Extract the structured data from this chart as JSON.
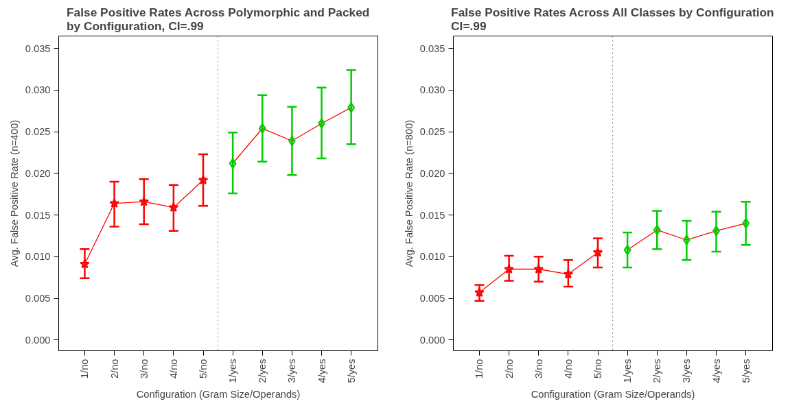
{
  "chart_data": [
    {
      "type": "line",
      "title": "False Positive Rates Across Polymorphic and Packed\nby Configuration, CI=.99",
      "xlabel": "Configuration (Gram Size/Operands)",
      "ylabel": "Avg. False Positive Rate (n=400)",
      "categories": [
        "1/no",
        "2/no",
        "3/no",
        "4/no",
        "5/no",
        "1/yes",
        "2/yes",
        "3/yes",
        "4/yes",
        "5/yes"
      ],
      "ylim": [
        -0.0013,
        0.0365
      ],
      "yticks": [
        {
          "value": 0,
          "label": "0.000"
        },
        0.005,
        {
          "value": 0.01,
          "label": "0.010"
        },
        0.015,
        {
          "value": 0.02,
          "label": "0.020"
        },
        0.025,
        {
          "value": 0.03,
          "label": "0.030"
        },
        0.035
      ],
      "grid": false,
      "series": [
        {
          "x": [
            "1/no",
            "2/no",
            "3/no",
            "4/no",
            "5/no"
          ],
          "color": "#ff0000",
          "marker": "star",
          "values": [
            0.0091,
            0.0164,
            0.0166,
            0.0159,
            0.0192
          ],
          "errors": [
            [
              0.0074,
              0.0109
            ],
            [
              0.0136,
              0.019
            ],
            [
              0.0139,
              0.0193
            ],
            [
              0.0131,
              0.0186
            ],
            [
              0.0161,
              0.0223
            ]
          ]
        },
        {
          "x": [
            "1/yes",
            "2/yes",
            "3/yes",
            "4/yes",
            "5/yes"
          ],
          "color": "#ff0000",
          "colors": [
            "#00cc00",
            "#00cc00",
            "#00cc00",
            "#00cc00",
            "#00cc00"
          ],
          "marker": "diamond",
          "values": [
            0.0212,
            0.0254,
            0.0239,
            0.026,
            0.0279
          ],
          "errors": [
            [
              0.0176,
              0.0249
            ],
            [
              0.0214,
              0.0294
            ],
            [
              0.0198,
              0.028
            ],
            [
              0.0218,
              0.0303
            ],
            [
              0.0235,
              0.0324
            ]
          ]
        }
      ]
    },
    {
      "type": "line",
      "title": "False Positive Rates Across All Classes by Configuration\nCI=.99",
      "xlabel": "Configuration (Gram Size/Operands)",
      "ylabel": "Avg. False Positive Rate (n=800)",
      "categories": [
        "1/no",
        "2/no",
        "3/no",
        "4/no",
        "5/no",
        "1/yes",
        "2/yes",
        "3/yes",
        "4/yes",
        "5/yes"
      ],
      "ylim": [
        -0.0013,
        0.0365
      ],
      "yticks": [
        {
          "value": 0,
          "label": "0.000"
        },
        0.005,
        {
          "value": 0.01,
          "label": "0.010"
        },
        0.015,
        {
          "value": 0.02,
          "label": "0.020"
        },
        0.025,
        {
          "value": 0.03,
          "label": "0.030"
        },
        0.035
      ],
      "grid": false,
      "series": [
        {
          "x": [
            "1/no",
            "2/no",
            "3/no",
            "4/no",
            "5/no"
          ],
          "color": "#ff0000",
          "marker": "star",
          "values": [
            0.0057,
            0.0085,
            0.0085,
            0.0079,
            0.0105
          ],
          "errors": [
            [
              0.0047,
              0.0066
            ],
            [
              0.0071,
              0.0101
            ],
            [
              0.007,
              0.01
            ],
            [
              0.0064,
              0.0096
            ],
            [
              0.0087,
              0.0122
            ]
          ]
        },
        {
          "x": [
            "1/yes",
            "2/yes",
            "3/yes",
            "4/yes",
            "5/yes"
          ],
          "color": "#ff0000",
          "colors": [
            "#00cc00",
            "#00cc00",
            "#00cc00",
            "#00cc00",
            "#00cc00"
          ],
          "marker": "diamond",
          "values": [
            0.0108,
            0.0132,
            0.012,
            0.0131,
            0.014
          ],
          "errors": [
            [
              0.0087,
              0.0129
            ],
            [
              0.0109,
              0.0155
            ],
            [
              0.0096,
              0.0143
            ],
            [
              0.0106,
              0.0154
            ],
            [
              0.0114,
              0.0166
            ]
          ]
        }
      ]
    }
  ]
}
